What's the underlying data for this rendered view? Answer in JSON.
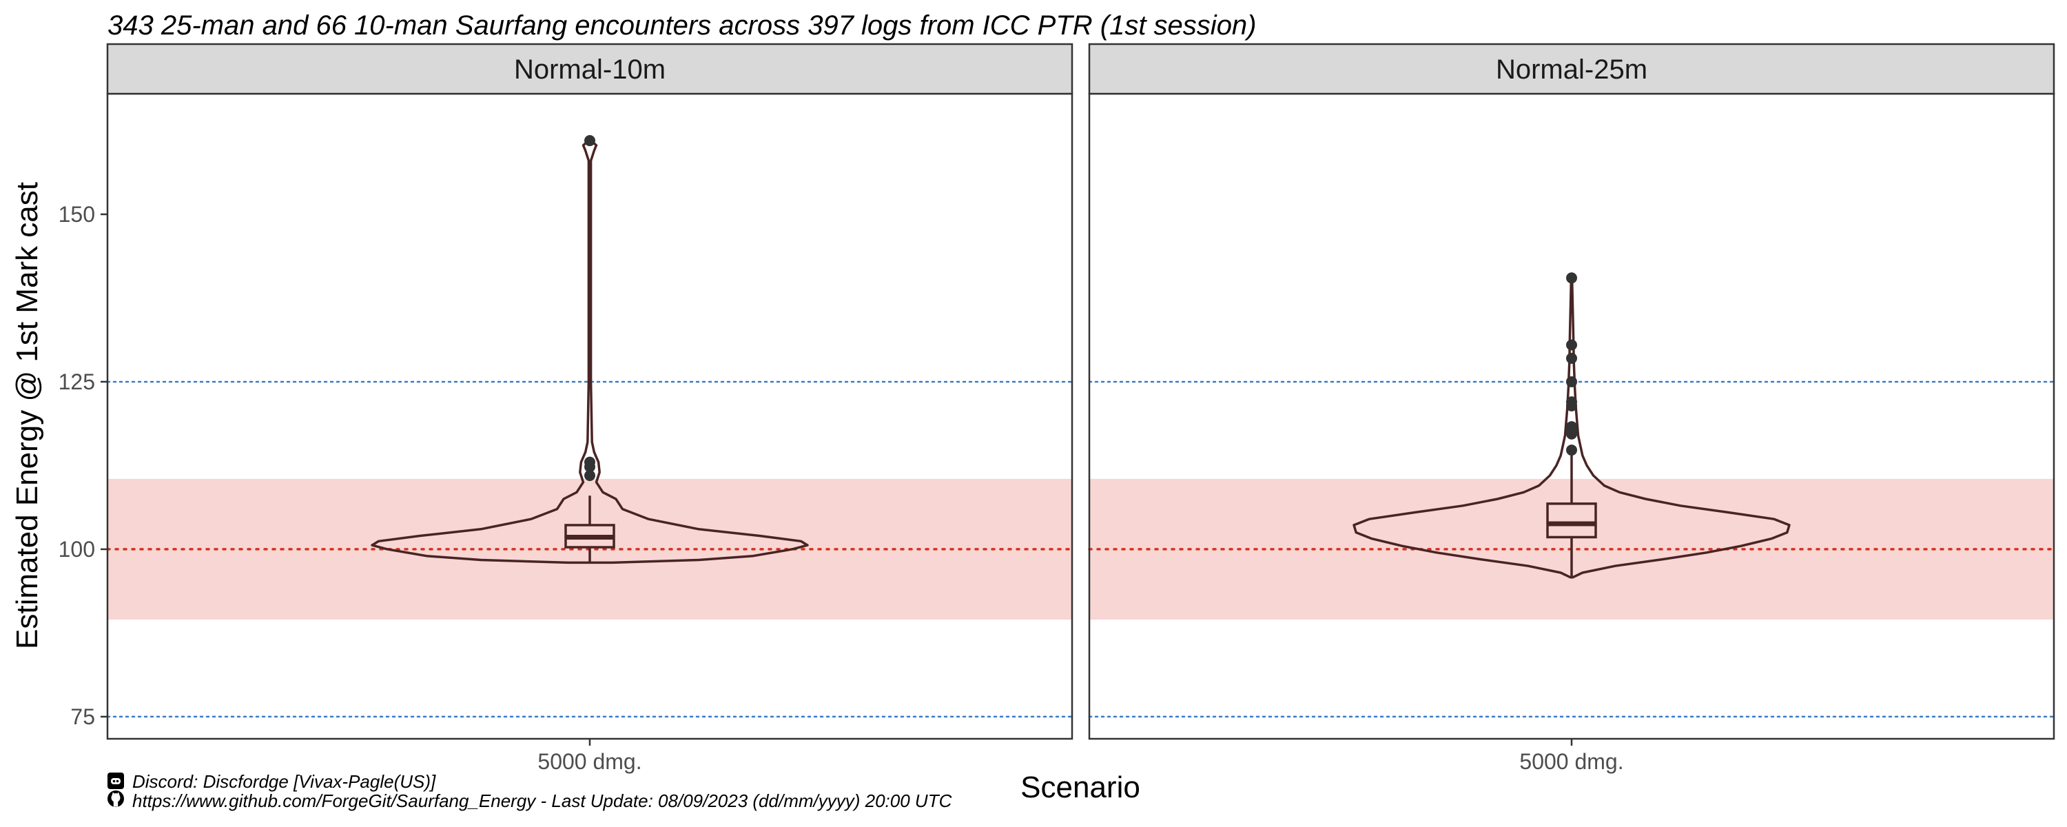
{
  "title": "343 25-man and 66 10-man Saurfang encounters across 397 logs from ICC PTR (1st session)",
  "caption": {
    "discord_icon": "discord-icon",
    "github_icon": "github-icon",
    "line1": "Discord: Discfordge [Vivax-Pagle(US)]",
    "line2": "https://www.github.com/ForgeGit/Saurfang_Energy - Last Update: 08/09/2023 (dd/mm/yyyy)  20:00 UTC"
  },
  "colors": {
    "panel_border": "#333333",
    "strip_fill": "#d9d9d9",
    "band_fill": "#f7d6d3",
    "reference_red": "#d7301f",
    "reference_blue": "#3a7ac4",
    "violin_stroke": "#4a2424",
    "outlier_fill": "#333333"
  },
  "chart_data": {
    "type": "violin",
    "xlabel": "Scenario",
    "ylabel": "Estimated Energy @ 1st Mark cast",
    "ylim": [
      71.7,
      168
    ],
    "yticks": [
      75,
      100,
      125,
      150
    ],
    "grid": false,
    "shaded_band": [
      89.5,
      110.5
    ],
    "reference_lines": [
      {
        "y": 100,
        "style": "dotted",
        "color": "red"
      },
      {
        "y": 125,
        "style": "dotted",
        "color": "blue"
      },
      {
        "y": 75,
        "style": "dotted",
        "color": "blue"
      }
    ],
    "panels": [
      {
        "facet": "Normal-10m",
        "category": "5000 dmg.",
        "box": {
          "lower_whisker": 98,
          "q1": 100.3,
          "median": 101.8,
          "q3": 103.6,
          "upper_whisker": 108
        },
        "outliers": [
          111,
          112.3,
          113,
          161
        ],
        "violin": [
          [
            98,
            0.1
          ],
          [
            98.4,
            0.5
          ],
          [
            99,
            0.75
          ],
          [
            100,
            0.93
          ],
          [
            100.6,
            1.0
          ],
          [
            101.2,
            0.97
          ],
          [
            102,
            0.78
          ],
          [
            103,
            0.5
          ],
          [
            104.5,
            0.27
          ],
          [
            106,
            0.15
          ],
          [
            107.5,
            0.12
          ],
          [
            108.5,
            0.06
          ],
          [
            110,
            0.03
          ],
          [
            111.5,
            0.045
          ],
          [
            113,
            0.04
          ],
          [
            114.5,
            0.02
          ],
          [
            116,
            0.01
          ],
          [
            125,
            0.005
          ],
          [
            140,
            0.005
          ],
          [
            158,
            0.005
          ],
          [
            159.5,
            0.02
          ],
          [
            160.3,
            0.03
          ],
          [
            161,
            0.005
          ]
        ]
      },
      {
        "facet": "Normal-25m",
        "category": "5000 dmg.",
        "box": {
          "lower_whisker": 95.7,
          "q1": 101.8,
          "median": 103.8,
          "q3": 106.8,
          "upper_whisker": 114
        },
        "outliers": [
          114.8,
          117.2,
          117.8,
          118.3,
          121.4,
          122,
          125,
          128.5,
          130.5,
          140.5
        ],
        "violin": [
          [
            95.8,
            0.005
          ],
          [
            96.5,
            0.05
          ],
          [
            97.5,
            0.2
          ],
          [
            98.5,
            0.42
          ],
          [
            99.5,
            0.62
          ],
          [
            100.5,
            0.78
          ],
          [
            101.6,
            0.92
          ],
          [
            102.5,
            0.99
          ],
          [
            103.6,
            1.0
          ],
          [
            104.5,
            0.93
          ],
          [
            105.5,
            0.72
          ],
          [
            106.5,
            0.5
          ],
          [
            107.5,
            0.34
          ],
          [
            108.5,
            0.22
          ],
          [
            109.5,
            0.15
          ],
          [
            111,
            0.1
          ],
          [
            112.5,
            0.07
          ],
          [
            114,
            0.05
          ],
          [
            115.5,
            0.04
          ],
          [
            117,
            0.03
          ],
          [
            119,
            0.025
          ],
          [
            121,
            0.02
          ],
          [
            124,
            0.015
          ],
          [
            128,
            0.01
          ],
          [
            132,
            0.008
          ],
          [
            136,
            0.005
          ],
          [
            140.5,
            0.002
          ]
        ]
      }
    ]
  }
}
